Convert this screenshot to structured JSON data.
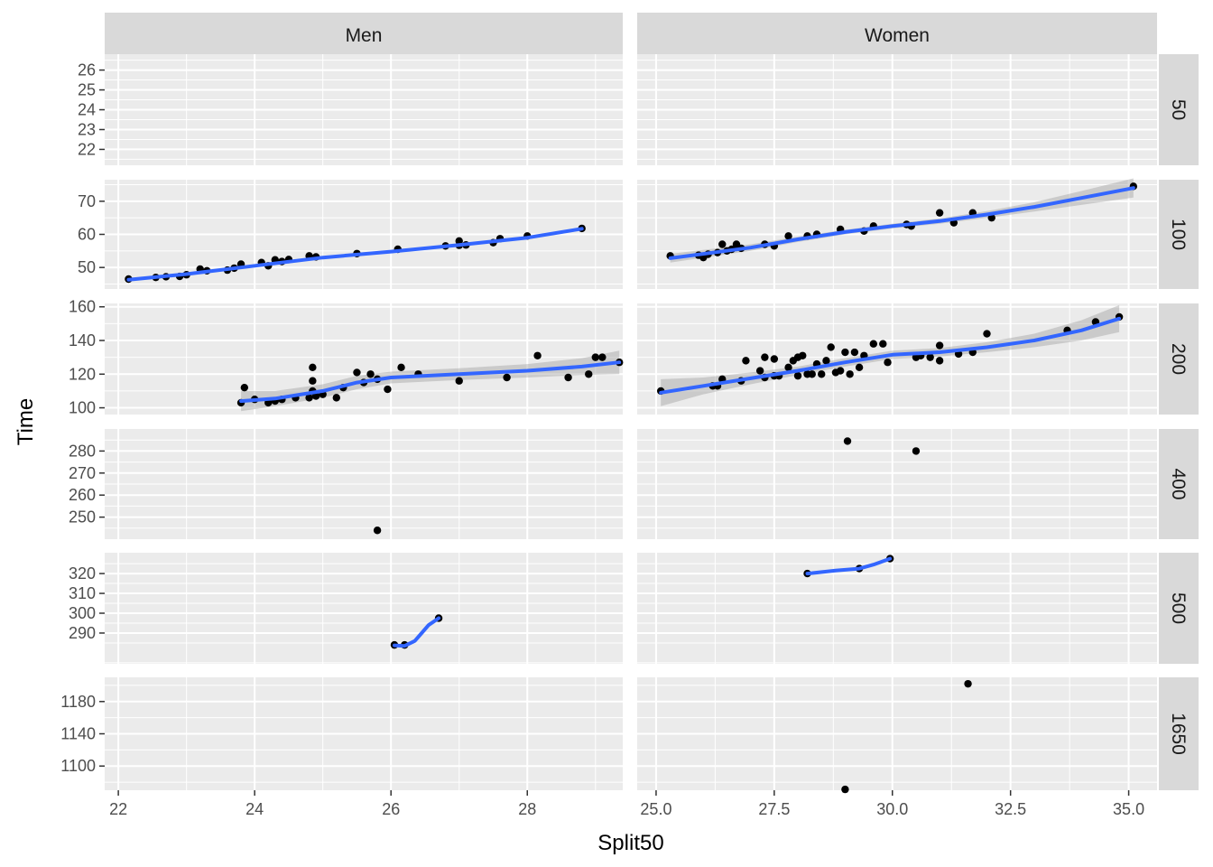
{
  "chart_data": {
    "type": "scatter",
    "facet_columns": [
      "Men",
      "Women"
    ],
    "facet_rows": [
      "50",
      "100",
      "200",
      "400",
      "500",
      "1650"
    ],
    "xlabel": "Split50",
    "ylabel": "Time",
    "scales": "free",
    "grid": true,
    "smooth": "loess",
    "colors": {
      "panel": "#ebebeb",
      "strip": "#d9d9d9",
      "point": "#000000",
      "smooth_line": "#3366ff",
      "ribbon": "#999999"
    },
    "columns": {
      "Men": {
        "xlim": [
          21.8,
          29.4
        ],
        "xticks": [
          22,
          24,
          26,
          28
        ],
        "xtick_labels": [
          "22",
          "24",
          "26",
          "28"
        ]
      },
      "Women": {
        "xlim": [
          24.6,
          35.6
        ],
        "xticks": [
          25,
          27.5,
          30,
          32.5,
          35
        ],
        "xtick_labels": [
          "25.0",
          "27.5",
          "30.0",
          "32.5",
          "35.0"
        ]
      }
    },
    "rows": {
      "50": {
        "ylim": [
          21.2,
          26.8
        ],
        "yticks": [
          22,
          23,
          24,
          25,
          26
        ],
        "ytick_labels": [
          "22",
          "23",
          "24",
          "25",
          "26"
        ]
      },
      "100": {
        "ylim": [
          43.5,
          76.5
        ],
        "yticks": [
          50,
          60,
          70
        ],
        "ytick_labels": [
          "50",
          "60",
          "70"
        ]
      },
      "200": {
        "ylim": [
          96,
          162
        ],
        "yticks": [
          100,
          120,
          140,
          160
        ],
        "ytick_labels": [
          "100",
          "120",
          "140",
          "160"
        ]
      },
      "400": {
        "ylim": [
          240,
          290
        ],
        "yticks": [
          250,
          260,
          270,
          280
        ],
        "ytick_labels": [
          "250",
          "260",
          "270",
          "280"
        ]
      },
      "500": {
        "ylim": [
          274.5,
          330.5
        ],
        "yticks": [
          290,
          300,
          310,
          320
        ],
        "ytick_labels": [
          "290",
          "300",
          "310",
          "320"
        ]
      },
      "1650": {
        "ylim": [
          1070,
          1210
        ],
        "yticks": [
          1100,
          1140,
          1180
        ],
        "ytick_labels": [
          "1100",
          "1140",
          "1180"
        ]
      }
    },
    "panels": [
      {
        "col": "Men",
        "row": "50",
        "points": [],
        "smooth": []
      },
      {
        "col": "Men",
        "row": "100",
        "points": [
          [
            22.15,
            46.5
          ],
          [
            22.55,
            47
          ],
          [
            22.7,
            47.2
          ],
          [
            22.9,
            47.3
          ],
          [
            23.0,
            47.8
          ],
          [
            23.2,
            49.5
          ],
          [
            23.3,
            49
          ],
          [
            23.6,
            49.2
          ],
          [
            23.7,
            49.8
          ],
          [
            23.8,
            51
          ],
          [
            24.1,
            51.5
          ],
          [
            24.2,
            50.5
          ],
          [
            24.3,
            52.3
          ],
          [
            24.4,
            51.8
          ],
          [
            24.5,
            52.4
          ],
          [
            24.8,
            53.5
          ],
          [
            24.9,
            53.2
          ],
          [
            25.5,
            54.2
          ],
          [
            26.1,
            55.5
          ],
          [
            26.8,
            56.5
          ],
          [
            27.0,
            56.7
          ],
          [
            27.0,
            58
          ],
          [
            27.1,
            56.8
          ],
          [
            27.5,
            57.5
          ],
          [
            27.6,
            58.7
          ],
          [
            28.0,
            59.5
          ],
          [
            28.8,
            61.8
          ]
        ],
        "smooth": [
          [
            22.15,
            46.3
          ],
          [
            23,
            48
          ],
          [
            24,
            50.5
          ],
          [
            25,
            53
          ],
          [
            26,
            54.8
          ],
          [
            27,
            56.8
          ],
          [
            28,
            59
          ],
          [
            28.8,
            61.7
          ]
        ]
      },
      {
        "col": "Men",
        "row": "200",
        "points": [
          [
            23.8,
            103
          ],
          [
            23.85,
            112
          ],
          [
            24.0,
            105
          ],
          [
            24.2,
            103
          ],
          [
            24.3,
            104
          ],
          [
            24.4,
            105
          ],
          [
            24.6,
            106
          ],
          [
            24.8,
            106
          ],
          [
            24.85,
            110
          ],
          [
            24.85,
            116
          ],
          [
            24.85,
            124
          ],
          [
            24.9,
            107
          ],
          [
            25.0,
            108
          ],
          [
            25.2,
            106
          ],
          [
            25.3,
            112
          ],
          [
            25.5,
            121
          ],
          [
            25.6,
            115
          ],
          [
            25.7,
            120
          ],
          [
            25.8,
            117
          ],
          [
            25.95,
            111
          ],
          [
            26.15,
            124
          ],
          [
            26.4,
            120
          ],
          [
            27.0,
            116
          ],
          [
            27.7,
            118
          ],
          [
            28.15,
            131
          ],
          [
            28.6,
            118
          ],
          [
            28.9,
            120
          ],
          [
            29.0,
            130
          ],
          [
            29.1,
            130
          ],
          [
            29.35,
            127
          ]
        ],
        "smooth": [
          [
            23.8,
            104
          ],
          [
            24.3,
            105.5
          ],
          [
            25,
            110
          ],
          [
            25.5,
            115
          ],
          [
            26,
            118
          ],
          [
            27,
            120
          ],
          [
            28,
            122
          ],
          [
            28.8,
            124.5
          ],
          [
            29.35,
            127
          ]
        ],
        "ribbon": [
          [
            23.8,
            98,
            110
          ],
          [
            24.3,
            101,
            110
          ],
          [
            25,
            106,
            114
          ],
          [
            25.5,
            111,
            119
          ],
          [
            26,
            114.5,
            121.5
          ],
          [
            27,
            116.5,
            123.5
          ],
          [
            28,
            118,
            126
          ],
          [
            28.8,
            119.5,
            129.5
          ],
          [
            29.35,
            120,
            134
          ]
        ]
      },
      {
        "col": "Men",
        "row": "400",
        "points": [
          [
            25.8,
            244
          ]
        ],
        "smooth": []
      },
      {
        "col": "Men",
        "row": "500",
        "points": [
          [
            26.05,
            284
          ],
          [
            26.2,
            284
          ],
          [
            26.7,
            297.5
          ]
        ],
        "smooth": [
          [
            26.05,
            283.8
          ],
          [
            26.2,
            283.5
          ],
          [
            26.35,
            286
          ],
          [
            26.45,
            290
          ],
          [
            26.55,
            294
          ],
          [
            26.7,
            297.5
          ]
        ]
      },
      {
        "col": "Men",
        "row": "1650",
        "points": [],
        "smooth": []
      },
      {
        "col": "Women",
        "row": "50",
        "points": [],
        "smooth": []
      },
      {
        "col": "Women",
        "row": "100",
        "points": [
          [
            25.3,
            53.5
          ],
          [
            25.9,
            53.7
          ],
          [
            26.0,
            53
          ],
          [
            26.1,
            54
          ],
          [
            26.3,
            54.5
          ],
          [
            26.4,
            57
          ],
          [
            26.5,
            55
          ],
          [
            26.6,
            55.5
          ],
          [
            26.7,
            57
          ],
          [
            26.8,
            55.8
          ],
          [
            27.3,
            57
          ],
          [
            27.5,
            56.5
          ],
          [
            27.8,
            59.5
          ],
          [
            28.2,
            59.5
          ],
          [
            28.4,
            60
          ],
          [
            28.9,
            61.5
          ],
          [
            29.4,
            61
          ],
          [
            29.6,
            62.5
          ],
          [
            30.3,
            63
          ],
          [
            30.4,
            62.5
          ],
          [
            31.0,
            66.5
          ],
          [
            31.3,
            63.5
          ],
          [
            31.7,
            66.5
          ],
          [
            32.1,
            65
          ],
          [
            35.1,
            74.5
          ]
        ],
        "smooth": [
          [
            25.3,
            52.8
          ],
          [
            27,
            56
          ],
          [
            28,
            58.5
          ],
          [
            29,
            60.7
          ],
          [
            30,
            62.5
          ],
          [
            31,
            64
          ],
          [
            32,
            66
          ],
          [
            33,
            68.3
          ],
          [
            34,
            71
          ],
          [
            35.1,
            74
          ]
        ],
        "ribbon": [
          [
            25.3,
            51.5,
            54.1
          ],
          [
            27,
            55,
            57
          ],
          [
            28,
            57.7,
            59.3
          ],
          [
            29,
            60,
            61.4
          ],
          [
            30,
            61.8,
            63.2
          ],
          [
            31,
            63.2,
            64.8
          ],
          [
            32,
            65,
            67
          ],
          [
            33,
            66.9,
            69.7
          ],
          [
            34,
            68.9,
            73.1
          ],
          [
            35.1,
            71.1,
            76.9
          ]
        ]
      },
      {
        "col": "Women",
        "row": "200",
        "points": [
          [
            25.1,
            110
          ],
          [
            26.2,
            113
          ],
          [
            26.3,
            113
          ],
          [
            26.4,
            117
          ],
          [
            26.8,
            116
          ],
          [
            26.9,
            128
          ],
          [
            27.2,
            122
          ],
          [
            27.3,
            130
          ],
          [
            27.3,
            118
          ],
          [
            27.5,
            129
          ],
          [
            27.5,
            119
          ],
          [
            27.6,
            119
          ],
          [
            27.8,
            124
          ],
          [
            27.9,
            128
          ],
          [
            28.0,
            130
          ],
          [
            28.0,
            119
          ],
          [
            28.1,
            131
          ],
          [
            28.2,
            120
          ],
          [
            28.3,
            120
          ],
          [
            28.4,
            126
          ],
          [
            28.5,
            120
          ],
          [
            28.6,
            128
          ],
          [
            28.7,
            136
          ],
          [
            28.8,
            121
          ],
          [
            28.9,
            122
          ],
          [
            29.0,
            133
          ],
          [
            29.1,
            120
          ],
          [
            29.2,
            133
          ],
          [
            29.3,
            124
          ],
          [
            29.4,
            131
          ],
          [
            29.6,
            138
          ],
          [
            29.8,
            138
          ],
          [
            29.9,
            127
          ],
          [
            30.5,
            130
          ],
          [
            30.6,
            131
          ],
          [
            30.8,
            130
          ],
          [
            31.0,
            137
          ],
          [
            31.0,
            128
          ],
          [
            31.4,
            132
          ],
          [
            31.7,
            133
          ],
          [
            32.0,
            144
          ],
          [
            33.7,
            146
          ],
          [
            34.3,
            151
          ],
          [
            34.8,
            154
          ]
        ],
        "smooth": [
          [
            25.1,
            109
          ],
          [
            26,
            113
          ],
          [
            27,
            117.5
          ],
          [
            28,
            122
          ],
          [
            29,
            127
          ],
          [
            30,
            131.5
          ],
          [
            31,
            133
          ],
          [
            32,
            136
          ],
          [
            33,
            140
          ],
          [
            34,
            146
          ],
          [
            34.8,
            153
          ]
        ],
        "ribbon": [
          [
            25.1,
            101,
            117
          ],
          [
            26,
            108,
            118
          ],
          [
            27,
            114,
            121
          ],
          [
            28,
            119.5,
            124.5
          ],
          [
            29,
            124.5,
            129.5
          ],
          [
            30,
            129,
            134
          ],
          [
            31,
            130.5,
            135.5
          ],
          [
            32,
            133,
            139
          ],
          [
            33,
            136,
            144
          ],
          [
            34,
            140,
            152
          ],
          [
            34.8,
            145,
            161
          ]
        ]
      },
      {
        "col": "Women",
        "row": "400",
        "points": [
          [
            29.05,
            284.5
          ],
          [
            30.5,
            280
          ]
        ],
        "smooth": []
      },
      {
        "col": "Women",
        "row": "500",
        "points": [
          [
            28.2,
            320
          ],
          [
            29.3,
            322.5
          ],
          [
            29.95,
            327.5
          ]
        ],
        "smooth": [
          [
            28.2,
            320
          ],
          [
            28.8,
            321.5
          ],
          [
            29.3,
            322.5
          ],
          [
            29.6,
            324.5
          ],
          [
            29.95,
            327.5
          ]
        ]
      },
      {
        "col": "Women",
        "row": "1650",
        "points": [
          [
            29.0,
            1071
          ],
          [
            31.6,
            1202
          ]
        ],
        "smooth": []
      }
    ]
  }
}
